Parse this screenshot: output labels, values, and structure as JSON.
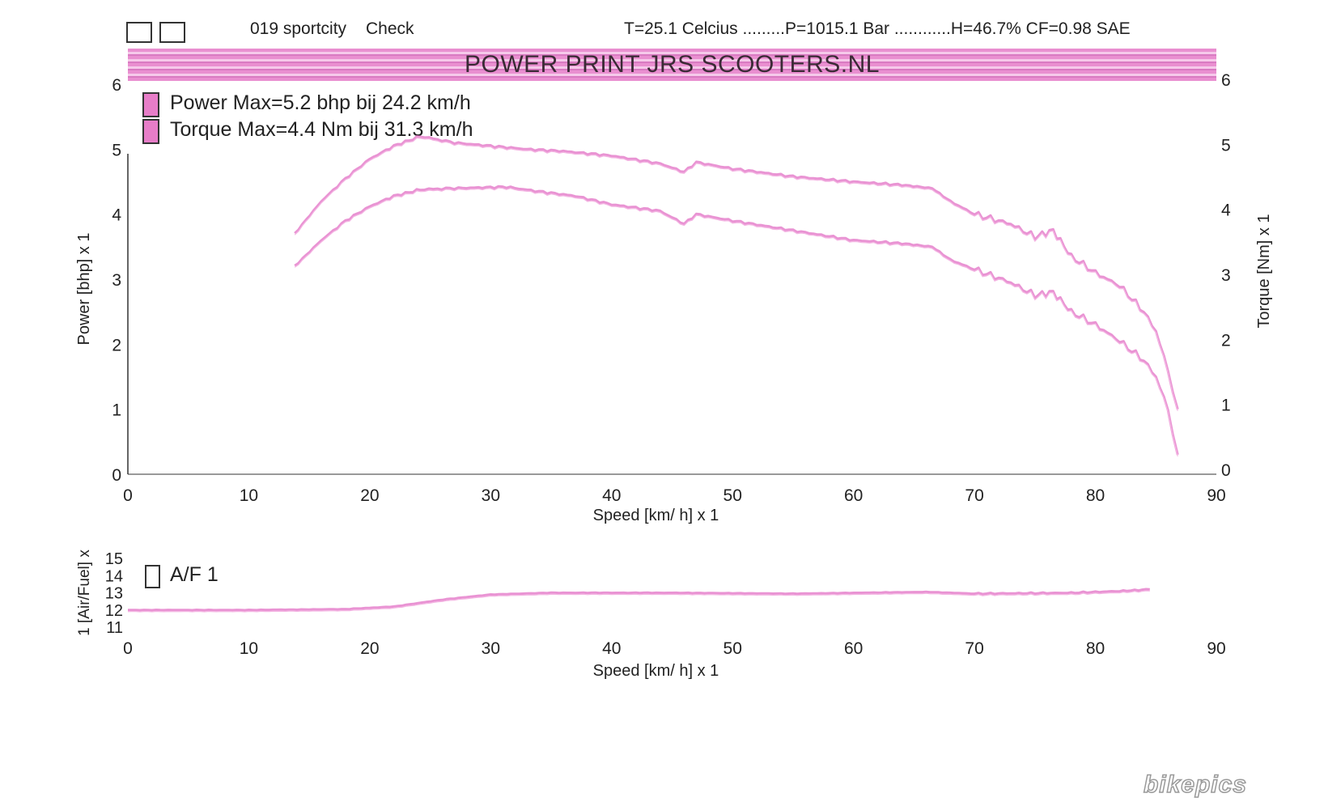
{
  "header": {
    "run_label": "019 sportcity",
    "check_label": "Check",
    "conditions": "T=25.1 Celcius .........P=1015.1 Bar ............H=46.7% CF=0.98 SAE",
    "banner_title": "POWER PRINT JRS SCOOTERS.NL"
  },
  "legend": {
    "power": "Power  Max=5.2 bhp bij 24.2 km/h",
    "torque": "Torque  Max=4.4 Nm bij 31.3 km/h",
    "af": "A/F 1"
  },
  "watermark": "bikepics",
  "colors": {
    "curve": "#e16fc4",
    "banner": "#e98fd0",
    "axis": "#333333"
  },
  "chart_data": [
    {
      "type": "line",
      "xlabel": "Speed [km/ h] x 1",
      "ylabel": "Power [bhp] x 1",
      "y2label": "Torque [Nm] x 1",
      "xlim": [
        0,
        90
      ],
      "ylim": [
        0,
        6
      ],
      "y2lim": [
        0,
        6
      ],
      "xticks": [
        "0",
        "10",
        "20",
        "30",
        "40",
        "50",
        "60",
        "70",
        "80",
        "90"
      ],
      "yticks": [
        "0",
        "1",
        "2",
        "3",
        "4",
        "5",
        "6"
      ],
      "y2ticks": [
        "0",
        "1",
        "2",
        "3",
        "4",
        "5",
        "6"
      ],
      "series": [
        {
          "name": "Power",
          "axis": "left",
          "x": [
            13.8,
            16,
            18,
            20,
            22,
            24.2,
            27,
            30,
            33,
            36,
            40,
            44,
            46,
            47,
            50,
            55,
            60,
            64,
            66.5,
            68,
            70,
            73,
            75,
            76.5,
            78,
            80,
            82,
            84,
            85,
            86,
            86.8
          ],
          "y": [
            3.7,
            4.2,
            4.55,
            4.85,
            5.05,
            5.2,
            5.1,
            5.05,
            5.0,
            4.97,
            4.9,
            4.78,
            4.65,
            4.8,
            4.7,
            4.58,
            4.5,
            4.45,
            4.4,
            4.2,
            4.0,
            3.85,
            3.65,
            3.75,
            3.35,
            3.1,
            2.9,
            2.5,
            2.2,
            1.6,
            1.0
          ]
        },
        {
          "name": "Torque",
          "axis": "right",
          "x": [
            13.8,
            16,
            18,
            20,
            22,
            24.2,
            27,
            31.3,
            34,
            37,
            40,
            44,
            46,
            47,
            50,
            55,
            60,
            64,
            66.5,
            68,
            70,
            73,
            75,
            76.5,
            78,
            80,
            82,
            84,
            85,
            86,
            86.8
          ],
          "y": [
            3.2,
            3.6,
            3.9,
            4.12,
            4.28,
            4.38,
            4.4,
            4.42,
            4.35,
            4.28,
            4.15,
            4.05,
            3.85,
            4.0,
            3.9,
            3.75,
            3.6,
            3.55,
            3.5,
            3.3,
            3.15,
            2.95,
            2.75,
            2.8,
            2.5,
            2.3,
            2.05,
            1.75,
            1.5,
            1.0,
            0.3
          ]
        }
      ]
    },
    {
      "type": "line",
      "xlabel": "Speed [km/ h] x 1",
      "ylabel": "1 [Air/Fuel] x",
      "xlim": [
        0,
        90
      ],
      "ylim": [
        11,
        15
      ],
      "xticks": [
        "0",
        "10",
        "20",
        "30",
        "40",
        "50",
        "60",
        "70",
        "80",
        "90"
      ],
      "yticks": [
        "11",
        "12",
        "13",
        "14",
        "15"
      ],
      "series": [
        {
          "name": "A/F 1",
          "x": [
            0,
            10,
            18,
            22,
            26,
            30,
            35,
            45,
            55,
            66,
            70,
            78,
            82,
            84.5
          ],
          "y": [
            12.0,
            12.0,
            12.05,
            12.2,
            12.6,
            12.9,
            13.0,
            13.0,
            12.95,
            13.05,
            12.95,
            13.0,
            13.1,
            13.2
          ]
        }
      ]
    }
  ]
}
